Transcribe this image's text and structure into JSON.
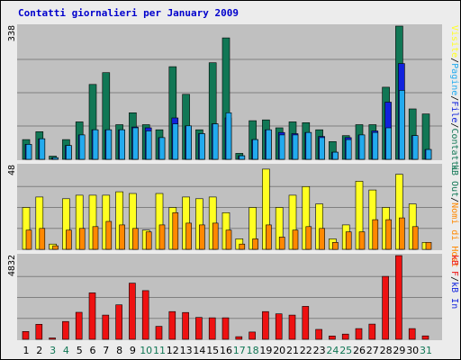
{
  "title": "Contatti giornalieri per January 2009",
  "colors": {
    "visits": "#117755",
    "pages": "#22aaee",
    "files": "#1122dd",
    "hosts": "#ffff22",
    "kbin": "#ff8800",
    "kbout": "#ee1111",
    "weekend": "#117755",
    "weekday": "#000000",
    "panel": "#c0c0c0",
    "grid": "#808080"
  },
  "right_labels": {
    "top": [
      {
        "text": "Contatti",
        "color": "#117755"
      },
      {
        "text": "/",
        "color": "#000000"
      },
      {
        "text": "File",
        "color": "#1122dd"
      },
      {
        "text": "/",
        "color": "#000000"
      },
      {
        "text": "Pagine",
        "color": "#22aaee"
      },
      {
        "text": "/",
        "color": "#000000"
      },
      {
        "text": "Visite",
        "color": "#ffff22"
      }
    ],
    "middle": [
      {
        "text": "Nomi di Host",
        "color": "#ff8800"
      },
      {
        "text": "/",
        "color": "#000000"
      },
      {
        "text": "kB Out",
        "color": "#117755"
      }
    ],
    "bottom": [
      {
        "text": "kB In",
        "color": "#1122dd"
      },
      {
        "text": "/",
        "color": "#000000"
      },
      {
        "text": "kB F",
        "color": "#ee1111"
      }
    ]
  },
  "chart_data": [
    {
      "type": "bar",
      "panel": "top",
      "ymax_label": "338",
      "ylim": [
        0,
        338
      ],
      "categories": [
        "1",
        "2",
        "3",
        "4",
        "5",
        "6",
        "7",
        "8",
        "9",
        "10",
        "11",
        "12",
        "13",
        "14",
        "15",
        "16",
        "17",
        "18",
        "19",
        "20",
        "21",
        "22",
        "23",
        "24",
        "25",
        "26",
        "27",
        "28",
        "29",
        "30",
        "31"
      ],
      "weekend_days": [
        "3",
        "4",
        "10",
        "11",
        "17",
        "18",
        "24",
        "25",
        "31"
      ],
      "series": [
        {
          "name": "Contatti",
          "values": [
            50,
            70,
            8,
            50,
            95,
            190,
            220,
            88,
            118,
            88,
            75,
            235,
            165,
            75,
            245,
            308,
            15,
            98,
            100,
            80,
            95,
            93,
            75,
            45,
            60,
            88,
            88,
            183,
            338,
            128,
            115
          ]
        },
        {
          "name": "File",
          "values": [
            38,
            52,
            4,
            35,
            62,
            75,
            75,
            75,
            82,
            80,
            55,
            105,
            85,
            65,
            90,
            105,
            9,
            50,
            75,
            68,
            65,
            68,
            58,
            18,
            55,
            62,
            72,
            145,
            243,
            60,
            25
          ]
        },
        {
          "name": "Pagine",
          "values": [
            38,
            52,
            4,
            35,
            62,
            75,
            75,
            75,
            80,
            72,
            55,
            90,
            85,
            65,
            90,
            118,
            9,
            50,
            75,
            62,
            62,
            68,
            55,
            18,
            50,
            62,
            68,
            80,
            175,
            60,
            25
          ]
        }
      ]
    },
    {
      "type": "bar",
      "panel": "middle",
      "ymax_label": "48",
      "ylim": [
        0,
        48
      ],
      "categories": [
        "1",
        "2",
        "3",
        "4",
        "5",
        "6",
        "7",
        "8",
        "9",
        "10",
        "11",
        "12",
        "13",
        "14",
        "15",
        "16",
        "17",
        "18",
        "19",
        "20",
        "21",
        "22",
        "23",
        "24",
        "25",
        "26",
        "27",
        "28",
        "29",
        "30",
        "31"
      ],
      "series": [
        {
          "name": "Visite",
          "values": [
            24,
            30,
            3,
            29,
            31,
            31,
            31,
            33,
            32,
            11,
            32,
            24,
            30,
            29,
            30,
            21,
            6,
            24,
            46,
            24,
            31,
            36,
            26,
            6,
            14,
            39,
            34,
            24,
            43,
            26,
            4
          ]
        },
        {
          "name": "Nomi di Host",
          "values": [
            11,
            12,
            2,
            11,
            12,
            13,
            16,
            14,
            12,
            10,
            14,
            21,
            15,
            14,
            15,
            11,
            3,
            6,
            14,
            7,
            11,
            13,
            12,
            4,
            10,
            10,
            17,
            17,
            18,
            13,
            4
          ]
        }
      ]
    },
    {
      "type": "bar",
      "panel": "bottom",
      "ymax_label": "4832",
      "ylim": [
        0,
        4832
      ],
      "categories": [
        "1",
        "2",
        "3",
        "4",
        "5",
        "6",
        "7",
        "8",
        "9",
        "10",
        "11",
        "12",
        "13",
        "14",
        "15",
        "16",
        "17",
        "18",
        "19",
        "20",
        "21",
        "22",
        "23",
        "24",
        "25",
        "26",
        "27",
        "28",
        "29",
        "30",
        "31"
      ],
      "series": [
        {
          "name": "kB F",
          "values": [
            450,
            870,
            80,
            1030,
            1560,
            2680,
            1400,
            1990,
            3240,
            2810,
            750,
            1600,
            1550,
            1260,
            1240,
            1240,
            150,
            420,
            1600,
            1470,
            1400,
            1900,
            570,
            190,
            300,
            620,
            880,
            3630,
            4832,
            620,
            200
          ]
        }
      ]
    }
  ]
}
